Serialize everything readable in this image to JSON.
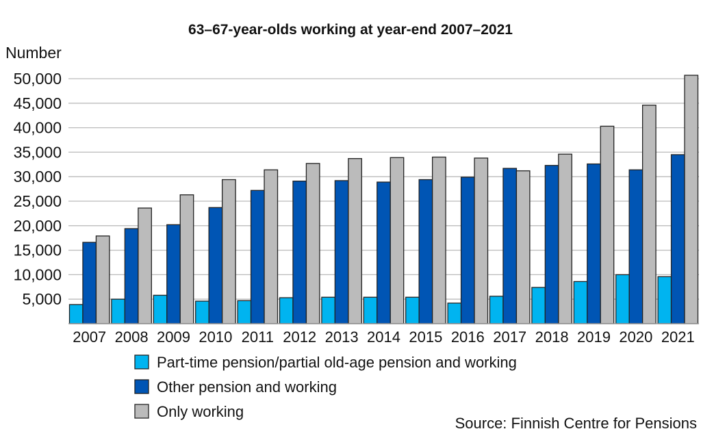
{
  "chart_data": {
    "type": "bar",
    "title": "63–67-year-olds working at year-end 2007–2021",
    "ylabel": "Number",
    "xlabel": "",
    "ylim": [
      0,
      50000
    ],
    "yticks": [
      "5,000",
      "10,000",
      "15,000",
      "20,000",
      "25,000",
      "30,000",
      "35,000",
      "40,000",
      "45,000",
      "50,000"
    ],
    "ytick_values": [
      5000,
      10000,
      15000,
      20000,
      25000,
      30000,
      35000,
      40000,
      45000,
      50000
    ],
    "grid": true,
    "legend_position": "bottom",
    "categories": [
      "2007",
      "2008",
      "2009",
      "2010",
      "2011",
      "2012",
      "2013",
      "2014",
      "2015",
      "2016",
      "2017",
      "2018",
      "2019",
      "2020",
      "2021"
    ],
    "series": [
      {
        "name": "Part-time pension/partial old-age pension and working",
        "color": "#00b4f0",
        "values": [
          3900,
          5000,
          5800,
          4600,
          4700,
          5300,
          5400,
          5400,
          5400,
          4200,
          5600,
          7400,
          8600,
          10000,
          9600
        ]
      },
      {
        "name": "Other pension and working",
        "color": "#0055b4",
        "values": [
          16600,
          19400,
          20200,
          23700,
          27200,
          29100,
          29200,
          28900,
          29400,
          29900,
          31700,
          32300,
          32600,
          31400,
          34500
        ]
      },
      {
        "name": "Only working",
        "color": "#bbbbbb",
        "values": [
          17900,
          23600,
          26300,
          29400,
          31400,
          32700,
          33700,
          33900,
          34000,
          33800,
          31200,
          34600,
          40300,
          44600,
          50700
        ]
      }
    ],
    "source": "Source: Finnish Centre for Pensions"
  }
}
